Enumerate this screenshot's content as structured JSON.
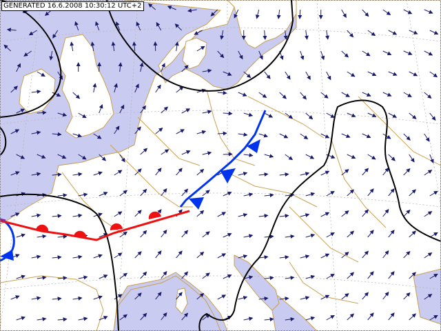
{
  "header": {
    "generated_label": "GENERATED 16.6.2008 10:30:12 UTC+2"
  },
  "colors": {
    "sea": "#c9cbf0",
    "land": "#ffffff",
    "border": "#c8a050",
    "grid": "#b8b8b8",
    "isobar": "#000000",
    "cold_front": "#0033ee",
    "warm_front": "#ee1111",
    "wind_arrow": "#1a1a6a"
  },
  "icons": [
    "wind-arrow-icon",
    "cold-front-triangle-icon",
    "warm-front-semicircle-icon"
  ]
}
